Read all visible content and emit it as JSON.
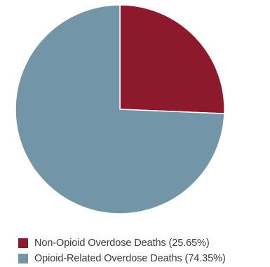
{
  "chart_data": {
    "type": "pie",
    "slices": [
      {
        "label": "Non-Opioid Overdose Deaths (25.65%)",
        "value": 25.65,
        "color": "#8c1a2c"
      },
      {
        "label": "Opioid-Related Overdose Deaths (74.35%)",
        "value": 74.35,
        "color": "#7295a8"
      }
    ],
    "legend_position": "bottom-left"
  }
}
